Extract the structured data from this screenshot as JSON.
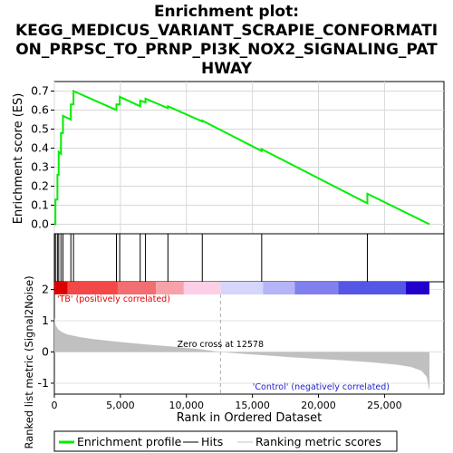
{
  "chart_data": {
    "type": "line",
    "title_lines": [
      "Enrichment plot:",
      "KEGG_MEDICUS_VARIANT_SCRAPIE_CONFORMATI",
      "ON_PRPSC_TO_PRNP_PI3K_NOX2_SIGNALING_PAT",
      "HWAY"
    ],
    "xlabel": "Rank in Ordered Dataset",
    "x_ticks": [
      0,
      5000,
      10000,
      15000,
      20000,
      25000
    ],
    "x_tick_labels": [
      "0",
      "5,000",
      "10,000",
      "15,000",
      "20,000",
      "25,000"
    ],
    "xlim": [
      0,
      29500
    ],
    "n_genes": 28400,
    "es_panel": {
      "ylabel": "Enrichment score (ES)",
      "ylim": [
        -0.05,
        0.75
      ],
      "y_ticks": [
        0.0,
        0.1,
        0.2,
        0.3,
        0.4,
        0.5,
        0.6,
        0.7
      ],
      "y_tick_labels": [
        "0.0",
        "0.1",
        "0.2",
        "0.3",
        "0.4",
        "0.5",
        "0.6",
        "0.7"
      ],
      "grid": true,
      "line_color": "#00ee00",
      "profile": [
        [
          0,
          0.0
        ],
        [
          80,
          0.0
        ],
        [
          80,
          0.13
        ],
        [
          230,
          0.13
        ],
        [
          230,
          0.26
        ],
        [
          330,
          0.26
        ],
        [
          330,
          0.38
        ],
        [
          500,
          0.37
        ],
        [
          500,
          0.48
        ],
        [
          650,
          0.48
        ],
        [
          650,
          0.57
        ],
        [
          1250,
          0.55
        ],
        [
          1250,
          0.63
        ],
        [
          1450,
          0.63
        ],
        [
          1450,
          0.7
        ],
        [
          4700,
          0.6
        ],
        [
          4700,
          0.63
        ],
        [
          4950,
          0.63
        ],
        [
          4950,
          0.67
        ],
        [
          6500,
          0.62
        ],
        [
          6500,
          0.65
        ],
        [
          6900,
          0.64
        ],
        [
          6900,
          0.66
        ],
        [
          8600,
          0.61
        ],
        [
          8600,
          0.62
        ],
        [
          11200,
          0.54
        ],
        [
          11200,
          0.545
        ],
        [
          15700,
          0.385
        ],
        [
          15700,
          0.395
        ],
        [
          23700,
          0.11
        ],
        [
          23700,
          0.16
        ],
        [
          28400,
          0.0
        ]
      ]
    },
    "hits": [
      80,
      230,
      330,
      500,
      650,
      1250,
      1450,
      4700,
      4950,
      6500,
      6900,
      8600,
      11200,
      15700,
      23700
    ],
    "bar_segments": [
      {
        "x0": 0,
        "x1": 1000,
        "color": "#dd0000"
      },
      {
        "x0": 1000,
        "x1": 4800,
        "color": "#f24848"
      },
      {
        "x0": 4800,
        "x1": 7700,
        "color": "#f26e72"
      },
      {
        "x0": 7700,
        "x1": 9800,
        "color": "#f7a2a8"
      },
      {
        "x0": 9800,
        "x1": 12600,
        "color": "#fdcfe6"
      },
      {
        "x0": 12600,
        "x1": 15800,
        "color": "#d6d6fa"
      },
      {
        "x0": 15800,
        "x1": 18200,
        "color": "#b4b4f6"
      },
      {
        "x0": 18200,
        "x1": 21500,
        "color": "#8080ee"
      },
      {
        "x0": 21500,
        "x1": 26600,
        "color": "#5555e6"
      },
      {
        "x0": 26600,
        "x1": 28400,
        "color": "#2200cc"
      }
    ],
    "metric_panel": {
      "ylabel": "Ranked list metric (Signal2Noise)",
      "ylim": [
        -1.35,
        2.25
      ],
      "y_ticks": [
        -1,
        0,
        1,
        2
      ],
      "y_tick_labels": [
        "-1",
        "0",
        "1",
        "2"
      ],
      "curve": [
        [
          0,
          1.1
        ],
        [
          100,
          0.85
        ],
        [
          300,
          0.72
        ],
        [
          600,
          0.63
        ],
        [
          1000,
          0.56
        ],
        [
          2000,
          0.47
        ],
        [
          3000,
          0.41
        ],
        [
          5000,
          0.32
        ],
        [
          7000,
          0.24
        ],
        [
          9000,
          0.17
        ],
        [
          11000,
          0.09
        ],
        [
          12578,
          0.0
        ],
        [
          14000,
          -0.05
        ],
        [
          16000,
          -0.11
        ],
        [
          18000,
          -0.17
        ],
        [
          20000,
          -0.22
        ],
        [
          22000,
          -0.27
        ],
        [
          24000,
          -0.33
        ],
        [
          26000,
          -0.41
        ],
        [
          27000,
          -0.48
        ],
        [
          27800,
          -0.6
        ],
        [
          28200,
          -0.8
        ],
        [
          28400,
          -1.25
        ]
      ],
      "fill_color": "#c0c0c0",
      "zero_cross": 12578,
      "zero_cross_label": "Zero cross at 12578",
      "pos_label": "'TB' (positively correlated)",
      "neg_label": "'Control' (negatively correlated)",
      "pos_color": "#dd0000",
      "neg_color": "#2222cc"
    },
    "legend": [
      {
        "label": "Enrichment profile",
        "color": "#00ee00",
        "kind": "thick-line"
      },
      {
        "label": "Hits",
        "color": "#000000",
        "kind": "line"
      },
      {
        "label": "Ranking metric scores",
        "color": "#c0c0c0",
        "kind": "line"
      }
    ],
    "legend_position": "bottom"
  }
}
